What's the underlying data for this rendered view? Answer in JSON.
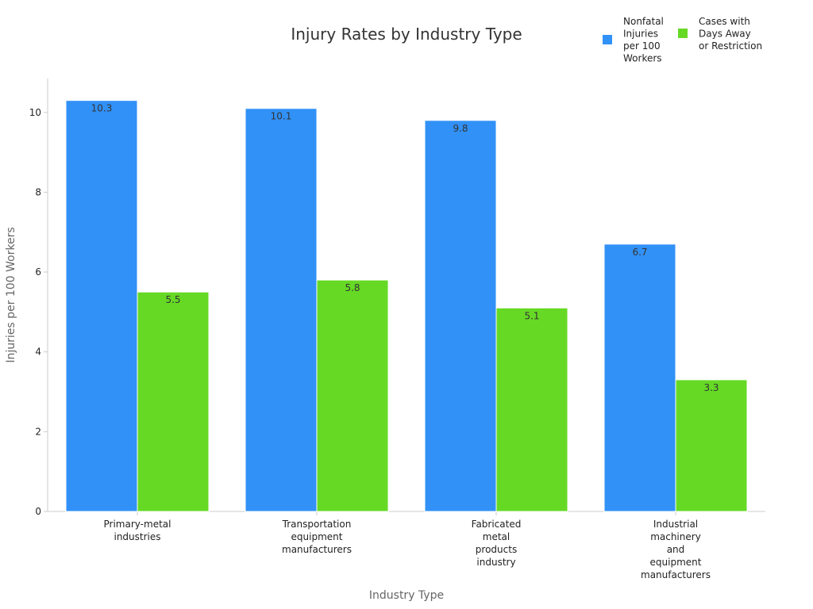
{
  "chart_data": {
    "type": "bar",
    "title": "Injury Rates by Industry Type",
    "xlabel": "Industry Type",
    "ylabel": "Injuries per 100 Workers",
    "categories": [
      "Primary-metal industries",
      "Transportation equipment manufacturers",
      "Fabricated metal products industry",
      "Industrial machinery and equipment manufacturers"
    ],
    "series": [
      {
        "name": "Nonfatal Injuries per 100 Workers",
        "color": "#3191f7",
        "values": [
          10.3,
          10.1,
          9.8,
          6.7
        ]
      },
      {
        "name": "Cases with Days Away or Restriction",
        "color": "#66d925",
        "values": [
          5.5,
          5.8,
          5.1,
          3.3
        ]
      }
    ],
    "ylim": [
      0,
      10.85
    ],
    "yticks": [
      0,
      2,
      4,
      6,
      8,
      10
    ],
    "grid": false,
    "legend_position": "top-right"
  }
}
